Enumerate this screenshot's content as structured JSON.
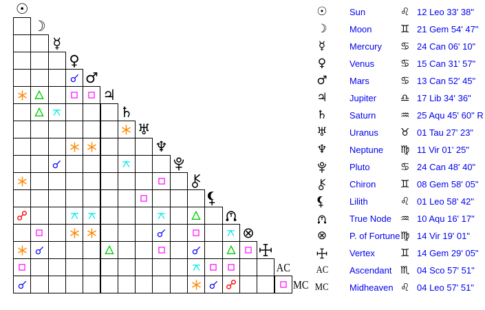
{
  "title": "Natal aspect grid and planet positions",
  "colors": {
    "background": "#ffffff",
    "grid_line": "#000000",
    "glyph": "#000000",
    "table_text": "#0000ee",
    "aspect": {
      "conjunction": "#0000ff",
      "opposition": "#ff0000",
      "square": "#ff00ff",
      "trine": "#00cc00",
      "sextile": "#ff8800",
      "quincunx": "#00e8e8"
    }
  },
  "icons": {
    "planets_unicode": {
      "sun": "☉",
      "moon": "☽",
      "mercury": "☿",
      "venus": "♀",
      "mars": "♂",
      "jupiter": "♃",
      "saturn": "♄",
      "uranus": "♅",
      "neptune": "♆",
      "fortune": "⊗",
      "ac": "AC",
      "mc": "MC"
    },
    "signs_unicode": {
      "leo": "♌",
      "gem": "♊",
      "can": "♋",
      "lib": "♎",
      "aqu": "♒",
      "tau": "♉",
      "vir": "♍",
      "sco": "♏"
    },
    "svg_drawn": [
      "pluto",
      "chiron",
      "lilith",
      "truenode",
      "vertex",
      "conjunction",
      "opposition",
      "square",
      "trine",
      "sextile",
      "quincunx"
    ]
  },
  "grid": {
    "planets": [
      "sun",
      "moon",
      "mercury",
      "venus",
      "mars",
      "jupiter",
      "saturn",
      "uranus",
      "neptune",
      "pluto",
      "chiron",
      "lilith",
      "truenode",
      "fortune",
      "vertex",
      "ac",
      "mc"
    ],
    "aspects": [
      {
        "row": 4,
        "col": 3,
        "type": "conjunction"
      },
      {
        "row": 5,
        "col": 0,
        "type": "sextile"
      },
      {
        "row": 5,
        "col": 1,
        "type": "trine"
      },
      {
        "row": 5,
        "col": 3,
        "type": "square"
      },
      {
        "row": 5,
        "col": 4,
        "type": "square"
      },
      {
        "row": 6,
        "col": 1,
        "type": "trine"
      },
      {
        "row": 6,
        "col": 2,
        "type": "quincunx"
      },
      {
        "row": 7,
        "col": 6,
        "type": "sextile"
      },
      {
        "row": 8,
        "col": 3,
        "type": "sextile"
      },
      {
        "row": 8,
        "col": 4,
        "type": "sextile"
      },
      {
        "row": 9,
        "col": 2,
        "type": "conjunction"
      },
      {
        "row": 9,
        "col": 6,
        "type": "quincunx"
      },
      {
        "row": 10,
        "col": 0,
        "type": "sextile"
      },
      {
        "row": 10,
        "col": 8,
        "type": "square"
      },
      {
        "row": 11,
        "col": 7,
        "type": "square"
      },
      {
        "row": 12,
        "col": 0,
        "type": "opposition"
      },
      {
        "row": 12,
        "col": 3,
        "type": "quincunx"
      },
      {
        "row": 12,
        "col": 4,
        "type": "quincunx"
      },
      {
        "row": 12,
        "col": 8,
        "type": "quincunx"
      },
      {
        "row": 12,
        "col": 10,
        "type": "trine"
      },
      {
        "row": 13,
        "col": 1,
        "type": "square"
      },
      {
        "row": 13,
        "col": 3,
        "type": "sextile"
      },
      {
        "row": 13,
        "col": 4,
        "type": "sextile"
      },
      {
        "row": 13,
        "col": 8,
        "type": "conjunction"
      },
      {
        "row": 13,
        "col": 10,
        "type": "square"
      },
      {
        "row": 13,
        "col": 12,
        "type": "quincunx"
      },
      {
        "row": 14,
        "col": 0,
        "type": "sextile"
      },
      {
        "row": 14,
        "col": 1,
        "type": "conjunction"
      },
      {
        "row": 14,
        "col": 5,
        "type": "trine"
      },
      {
        "row": 14,
        "col": 8,
        "type": "square"
      },
      {
        "row": 14,
        "col": 10,
        "type": "conjunction"
      },
      {
        "row": 14,
        "col": 12,
        "type": "trine"
      },
      {
        "row": 14,
        "col": 13,
        "type": "square"
      },
      {
        "row": 15,
        "col": 0,
        "type": "square"
      },
      {
        "row": 15,
        "col": 10,
        "type": "quincunx"
      },
      {
        "row": 15,
        "col": 11,
        "type": "square"
      },
      {
        "row": 15,
        "col": 12,
        "type": "square"
      },
      {
        "row": 16,
        "col": 0,
        "type": "conjunction"
      },
      {
        "row": 16,
        "col": 10,
        "type": "sextile"
      },
      {
        "row": 16,
        "col": 11,
        "type": "conjunction"
      },
      {
        "row": 16,
        "col": 12,
        "type": "opposition"
      },
      {
        "row": 16,
        "col": 15,
        "type": "square"
      }
    ]
  },
  "table": {
    "rows": [
      {
        "planet": "sun",
        "name": "Sun",
        "sign": "leo",
        "position": "12 Leo 33' 38\""
      },
      {
        "planet": "moon",
        "name": "Moon",
        "sign": "gem",
        "position": "21 Gem 54' 47\""
      },
      {
        "planet": "mercury",
        "name": "Mercury",
        "sign": "can",
        "position": "24 Can 06' 10\""
      },
      {
        "planet": "venus",
        "name": "Venus",
        "sign": "can",
        "position": "15 Can 31' 57\""
      },
      {
        "planet": "mars",
        "name": "Mars",
        "sign": "can",
        "position": "13 Can 52' 45\""
      },
      {
        "planet": "jupiter",
        "name": "Jupiter",
        "sign": "lib",
        "position": "17 Lib 34' 36\""
      },
      {
        "planet": "saturn",
        "name": "Saturn",
        "sign": "aqu",
        "position": "25 Aqu 45' 60\" R"
      },
      {
        "planet": "uranus",
        "name": "Uranus",
        "sign": "tau",
        "position": "01 Tau 27' 23\""
      },
      {
        "planet": "neptune",
        "name": "Neptune",
        "sign": "vir",
        "position": "11 Vir 01' 25\""
      },
      {
        "planet": "pluto",
        "name": "Pluto",
        "sign": "can",
        "position": "24 Can 48' 40\""
      },
      {
        "planet": "chiron",
        "name": "Chiron",
        "sign": "gem",
        "position": "08 Gem 58' 05\""
      },
      {
        "planet": "lilith",
        "name": "Lilith",
        "sign": "leo",
        "position": "01 Leo 58' 42\""
      },
      {
        "planet": "truenode",
        "name": "True Node",
        "sign": "aqu",
        "position": "10 Aqu 16' 17\""
      },
      {
        "planet": "fortune",
        "name": "P. of Fortune",
        "sign": "vir",
        "position": "14 Vir 19' 01\""
      },
      {
        "planet": "vertex",
        "name": "Vertex",
        "sign": "gem",
        "position": "14 Gem 29' 05\""
      },
      {
        "planet": "ac",
        "name": "Ascendant",
        "sign": "sco",
        "position": "04 Sco 57' 51\""
      },
      {
        "planet": "mc",
        "name": "Midheaven",
        "sign": "leo",
        "position": "04 Leo 57' 51\""
      }
    ]
  }
}
